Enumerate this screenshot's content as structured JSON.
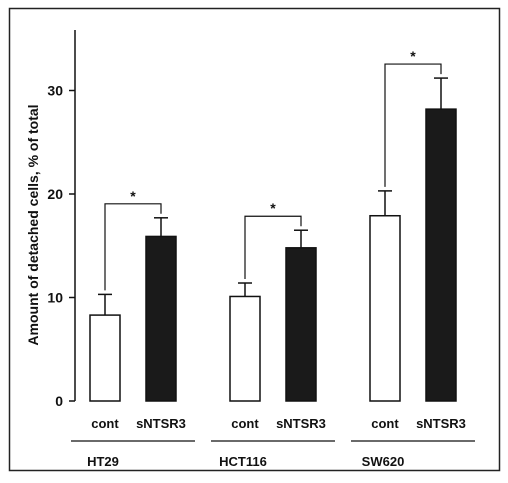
{
  "chart_data": {
    "type": "bar",
    "title": "",
    "xlabel": "",
    "ylabel": "Amount of detached cells, % of total",
    "ylim": [
      0,
      36
    ],
    "yticks": [
      0,
      10,
      20,
      30
    ],
    "grid": false,
    "groups": [
      {
        "name": "HT29",
        "bars": [
          {
            "label": "cont",
            "value": 8.3,
            "error": 2.0,
            "fill": "#ffffff"
          },
          {
            "label": "sNTSR3",
            "value": 15.9,
            "error": 1.8,
            "fill": "#1a1a1a"
          }
        ],
        "significance": "*"
      },
      {
        "name": "HCT116",
        "bars": [
          {
            "label": "cont",
            "value": 10.1,
            "error": 1.3,
            "fill": "#ffffff"
          },
          {
            "label": "sNTSR3",
            "value": 14.8,
            "error": 1.7,
            "fill": "#1a1a1a"
          }
        ],
        "significance": "*"
      },
      {
        "name": "SW620",
        "bars": [
          {
            "label": "cont",
            "value": 17.9,
            "error": 2.4,
            "fill": "#ffffff"
          },
          {
            "label": "sNTSR3",
            "value": 28.2,
            "error": 3.0,
            "fill": "#1a1a1a"
          }
        ],
        "significance": "*"
      }
    ]
  }
}
